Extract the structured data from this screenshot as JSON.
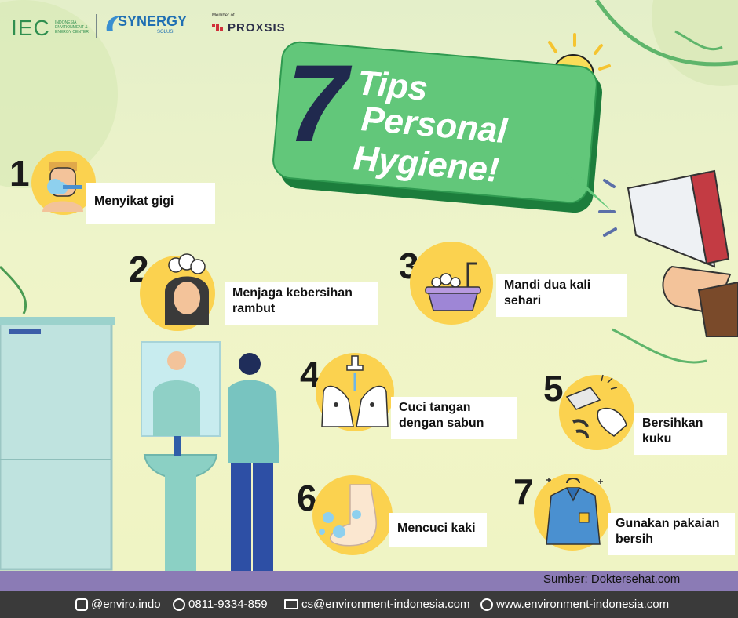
{
  "logos": {
    "iec": "IEC",
    "iec_sub": "INDONESIA ENVIRONMENT & ENERGY CENTER",
    "synergy": "SYNERGY",
    "synergy_sub": "SOLUSI",
    "member_of": "Member of",
    "proxsis": "PROXSIS"
  },
  "title": {
    "number": "7",
    "line1": "Tips",
    "line2": "Personal",
    "line3": "Hygiene!"
  },
  "tips": [
    {
      "number": "1",
      "label": "Menyikat gigi",
      "icon": "toothbrush-icon"
    },
    {
      "number": "2",
      "label": "Menjaga kebersihan rambut",
      "icon": "hair-wash-icon"
    },
    {
      "number": "3",
      "label": "Mandi dua kali sehari",
      "icon": "bathtub-icon"
    },
    {
      "number": "4",
      "label": "Cuci tangan dengan sabun",
      "icon": "hand-wash-icon"
    },
    {
      "number": "5",
      "label": "Bersihkan kuku",
      "icon": "nail-clipper-icon"
    },
    {
      "number": "6",
      "label": "Mencuci kaki",
      "icon": "foot-wash-icon"
    },
    {
      "number": "7",
      "label": "Gunakan pakaian bersih",
      "icon": "clean-shirt-icon"
    }
  ],
  "source": "Sumber: Doktersehat.com",
  "footer": {
    "instagram": "@enviro.indo",
    "phone": "0811-9334-859",
    "email": "cs@environment-indonesia.com",
    "website": "www.environment-indonesia.com"
  },
  "colors": {
    "accent_green": "#62c77a",
    "dark_navy": "#20294e",
    "icon_yellow": "#fbd24f",
    "floor_purple": "#8b7bb5",
    "footer_dark": "#3a3a3a"
  }
}
